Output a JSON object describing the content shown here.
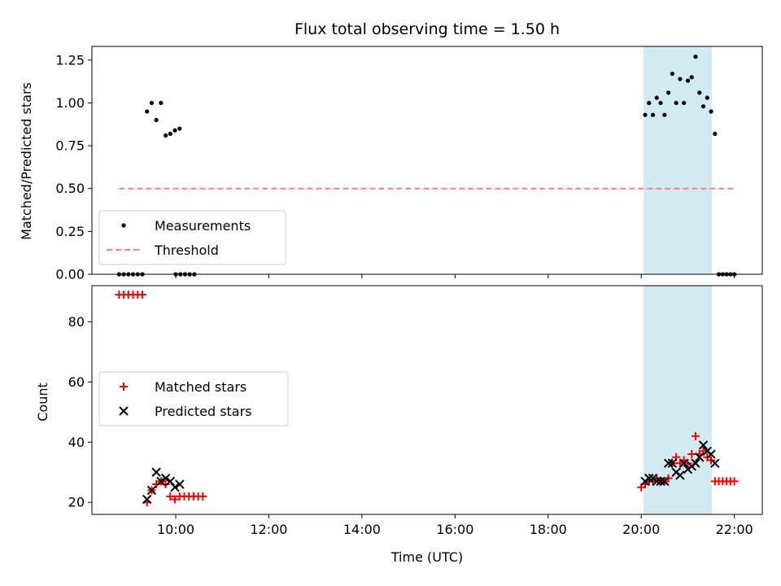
{
  "chart_data": [
    {
      "type": "scatter",
      "title": "Flux total observing time = 1.50 h",
      "xlabel": "",
      "ylabel": "Matched/Predicted stars",
      "ylim": [
        0,
        1.33
      ],
      "xlim": [
        "08:12",
        "22:36"
      ],
      "yticks": [
        "0.00",
        "0.25",
        "0.50",
        "0.75",
        "1.00",
        "1.25"
      ],
      "legend_position": "lower-left",
      "shaded_interval": {
        "start": "20:03",
        "end": "21:31",
        "color": "#add8e6"
      },
      "series": [
        {
          "name": "Measurements",
          "marker": "dot",
          "color": "#000000",
          "points": [
            [
              "08:47",
              0
            ],
            [
              "08:53",
              0
            ],
            [
              "08:59",
              0
            ],
            [
              "09:05",
              0
            ],
            [
              "09:11",
              0
            ],
            [
              "09:17",
              0
            ],
            [
              "09:23",
              0.95
            ],
            [
              "09:29",
              1.0
            ],
            [
              "09:35",
              0.9
            ],
            [
              "09:41",
              1.0
            ],
            [
              "09:47",
              0.81
            ],
            [
              "09:53",
              0.82
            ],
            [
              "09:59",
              0.84
            ],
            [
              "10:05",
              0.85
            ],
            [
              "10:00",
              0
            ],
            [
              "10:06",
              0
            ],
            [
              "10:12",
              0
            ],
            [
              "10:18",
              0
            ],
            [
              "10:24",
              0
            ],
            [
              "20:05",
              0.93
            ],
            [
              "20:10",
              1.0
            ],
            [
              "20:15",
              0.93
            ],
            [
              "20:20",
              1.03
            ],
            [
              "20:25",
              1.0
            ],
            [
              "20:30",
              0.93
            ],
            [
              "20:35",
              1.06
            ],
            [
              "20:40",
              1.17
            ],
            [
              "20:45",
              1.0
            ],
            [
              "20:50",
              1.14
            ],
            [
              "20:55",
              1.0
            ],
            [
              "21:00",
              1.13
            ],
            [
              "21:05",
              1.15
            ],
            [
              "21:10",
              1.27
            ],
            [
              "21:15",
              1.06
            ],
            [
              "21:20",
              0.98
            ],
            [
              "21:25",
              1.03
            ],
            [
              "21:30",
              0.95
            ],
            [
              "21:35",
              0.82
            ],
            [
              "21:40",
              0
            ],
            [
              "21:45",
              0
            ],
            [
              "21:50",
              0
            ],
            [
              "21:55",
              0
            ],
            [
              "22:00",
              0
            ]
          ]
        },
        {
          "name": "Threshold",
          "style": "dashed",
          "color": "#ff7f7f",
          "x": [
            "08:47",
            "22:00"
          ],
          "y": [
            0.5,
            0.5
          ]
        }
      ]
    },
    {
      "type": "scatter",
      "title": "",
      "xlabel": "Time (UTC)",
      "ylabel": "Count",
      "ylim": [
        16,
        92
      ],
      "xlim": [
        "08:12",
        "22:36"
      ],
      "xticks": [
        "10:00",
        "12:00",
        "14:00",
        "16:00",
        "18:00",
        "20:00",
        "22:00"
      ],
      "yticks": [
        "20",
        "40",
        "60",
        "80"
      ],
      "legend_position": "center-left",
      "shaded_interval": {
        "start": "20:03",
        "end": "21:31",
        "color": "#add8e6"
      },
      "series": [
        {
          "name": "Matched stars",
          "marker": "plus",
          "color": "#ff0000",
          "points": [
            [
              "08:47",
              89
            ],
            [
              "08:53",
              89
            ],
            [
              "08:59",
              89
            ],
            [
              "09:05",
              89
            ],
            [
              "09:11",
              89
            ],
            [
              "09:17",
              89
            ],
            [
              "09:23",
              20
            ],
            [
              "09:29",
              24
            ],
            [
              "09:35",
              26
            ],
            [
              "09:41",
              27
            ],
            [
              "09:47",
              26
            ],
            [
              "09:53",
              22
            ],
            [
              "09:59",
              21
            ],
            [
              "10:05",
              22
            ],
            [
              "10:11",
              22
            ],
            [
              "10:17",
              22
            ],
            [
              "10:23",
              22
            ],
            [
              "10:29",
              22
            ],
            [
              "10:35",
              22
            ],
            [
              "20:00",
              25
            ],
            [
              "20:05",
              26
            ],
            [
              "20:10",
              27
            ],
            [
              "20:15",
              27
            ],
            [
              "20:20",
              28
            ],
            [
              "20:25",
              27
            ],
            [
              "20:30",
              27
            ],
            [
              "20:35",
              28
            ],
            [
              "20:40",
              33
            ],
            [
              "20:45",
              35
            ],
            [
              "20:50",
              33
            ],
            [
              "20:55",
              34
            ],
            [
              "21:00",
              33
            ],
            [
              "21:05",
              36
            ],
            [
              "21:10",
              42
            ],
            [
              "21:15",
              36
            ],
            [
              "21:20",
              37
            ],
            [
              "21:25",
              35
            ],
            [
              "21:30",
              34
            ],
            [
              "21:35",
              27
            ],
            [
              "21:40",
              27
            ],
            [
              "21:45",
              27
            ],
            [
              "21:50",
              27
            ],
            [
              "21:55",
              27
            ],
            [
              "22:00",
              27
            ]
          ]
        },
        {
          "name": "Predicted stars",
          "marker": "x",
          "color": "#000000",
          "points": [
            [
              "09:23",
              21
            ],
            [
              "09:29",
              24
            ],
            [
              "09:35",
              30
            ],
            [
              "09:41",
              27
            ],
            [
              "09:47",
              28
            ],
            [
              "09:53",
              27
            ],
            [
              "09:59",
              25
            ],
            [
              "10:05",
              26
            ],
            [
              "20:05",
              27
            ],
            [
              "20:10",
              28
            ],
            [
              "20:15",
              28
            ],
            [
              "20:20",
              27
            ],
            [
              "20:25",
              27
            ],
            [
              "20:30",
              27
            ],
            [
              "20:35",
              33
            ],
            [
              "20:40",
              33
            ],
            [
              "20:45",
              30
            ],
            [
              "20:50",
              29
            ],
            [
              "20:55",
              33
            ],
            [
              "21:00",
              31
            ],
            [
              "21:05",
              32
            ],
            [
              "21:10",
              33
            ],
            [
              "21:15",
              35
            ],
            [
              "21:20",
              39
            ],
            [
              "21:25",
              37
            ],
            [
              "21:30",
              36
            ],
            [
              "21:35",
              33
            ]
          ]
        }
      ]
    }
  ]
}
